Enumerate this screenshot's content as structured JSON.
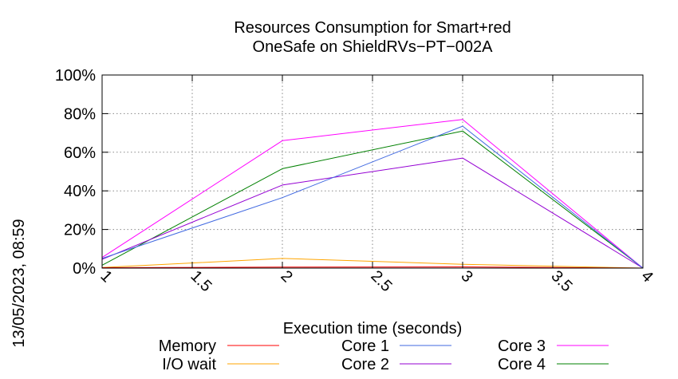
{
  "chart_data": {
    "type": "line",
    "title": [
      "Resources Consumption for Smart+red",
      "OneSafe on ShieldRVs−PT−002A"
    ],
    "xlabel": "Execution time (seconds)",
    "ylabel": "",
    "side_label": "13/05/2023, 08:59",
    "xlim": [
      1,
      4
    ],
    "ylim": [
      0,
      100
    ],
    "x_ticks": [
      1,
      1.5,
      2,
      2.5,
      3,
      3.5,
      4
    ],
    "x_tick_labels": [
      "1",
      "1.5",
      "2",
      "2.5",
      "3",
      "3.5",
      "4"
    ],
    "y_ticks": [
      0,
      20,
      40,
      60,
      80,
      100
    ],
    "y_tick_labels": [
      "0%",
      "20%",
      "40%",
      "60%",
      "80%",
      "100%"
    ],
    "grid": true,
    "legend_position": "bottom",
    "x": [
      1,
      2,
      3,
      4
    ],
    "series": [
      {
        "name": "Memory",
        "color": "#ff0000",
        "values": [
          0.2,
          0.5,
          0.6,
          0
        ]
      },
      {
        "name": "I/O wait",
        "color": "#ffa500",
        "values": [
          0.3,
          5,
          2,
          0
        ]
      },
      {
        "name": "Core 1",
        "color": "#4169e1",
        "values": [
          5,
          36.5,
          73.5,
          0
        ]
      },
      {
        "name": "Core 2",
        "color": "#9400d3",
        "values": [
          4.5,
          43,
          57,
          0
        ]
      },
      {
        "name": "Core 3",
        "color": "#ff00ff",
        "values": [
          5.5,
          66,
          77,
          0
        ]
      },
      {
        "name": "Core 4",
        "color": "#008000",
        "values": [
          1.5,
          51.5,
          71,
          0
        ]
      }
    ]
  }
}
